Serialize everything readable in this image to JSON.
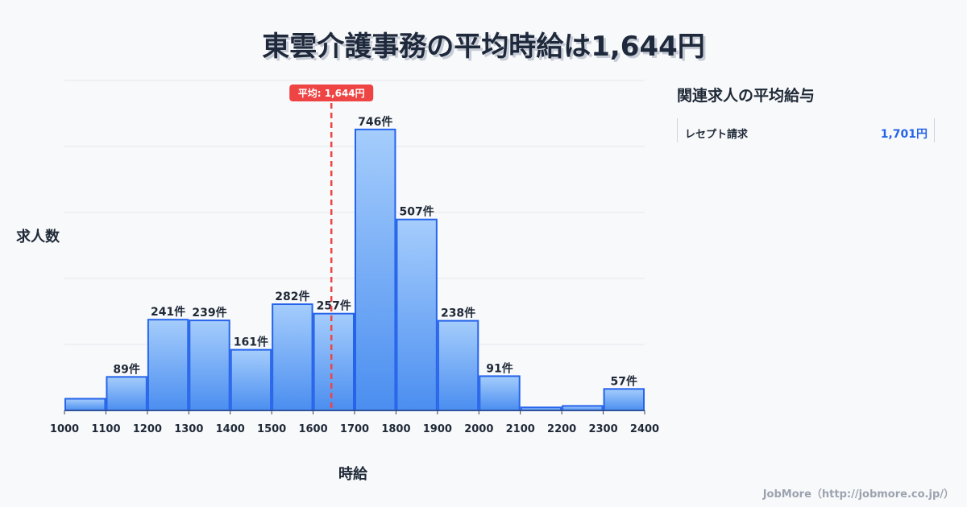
{
  "chart_data": {
    "type": "bar",
    "title": "東雲介護事務の平均時給は1,644円",
    "xlabel": "時給",
    "ylabel": "求人数",
    "bin_edges": [
      1000,
      1100,
      1200,
      1300,
      1400,
      1500,
      1600,
      1700,
      1800,
      1900,
      2000,
      2100,
      2200,
      2300,
      2400
    ],
    "values": [
      31,
      89,
      241,
      239,
      161,
      282,
      257,
      746,
      507,
      238,
      91,
      8,
      12,
      57
    ],
    "labels": [
      "",
      "89件",
      "241件",
      "239件",
      "161件",
      "282件",
      "257件",
      "746件",
      "507件",
      "238件",
      "91件",
      "",
      "",
      "57件"
    ],
    "ylim": [
      0,
      876
    ],
    "grid": true,
    "mean": 1644,
    "mean_label": "平均: 1,644円",
    "colors": {
      "bar_top": "#a5cdfc",
      "bar_bottom": "#4b8ef0",
      "bar_border": "#2563eb",
      "mean": "#ef4444"
    }
  },
  "side": {
    "title": "関連求人の平均給与",
    "items": [
      {
        "name": "レセプト請求",
        "value": "1,701円"
      }
    ]
  },
  "footer": "JobMore（http://jobmore.co.jp/）"
}
